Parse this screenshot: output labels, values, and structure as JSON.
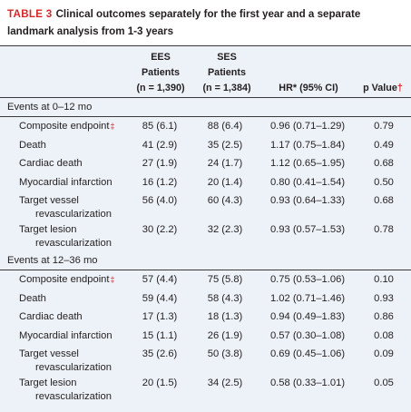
{
  "caption": {
    "label": "TABLE 3",
    "text": "Clinical outcomes separately for the first year and a separate landmark analysis from 1-3 years"
  },
  "headers": {
    "ees": [
      "EES",
      "Patients",
      "(n = 1,390)"
    ],
    "ses": [
      "SES",
      "Patients",
      "(n = 1,384)"
    ],
    "hr": "HR* (95% CI)",
    "p": "p Value",
    "p_mark": "†"
  },
  "sections": [
    {
      "title": "Events at 0–12 mo",
      "rows": [
        {
          "name": "Composite endpoint",
          "mark": "‡",
          "cont": "",
          "ees": "85 (6.1)",
          "ses": "88 (6.4)",
          "hr": "0.96 (0.71–1.29)",
          "p": "0.79"
        },
        {
          "name": "Death",
          "mark": "",
          "cont": "",
          "ees": "41 (2.9)",
          "ses": "35 (2.5)",
          "hr": "1.17 (0.75–1.84)",
          "p": "0.49"
        },
        {
          "name": "Cardiac death",
          "mark": "",
          "cont": "",
          "ees": "27 (1.9)",
          "ses": "24 (1.7)",
          "hr": "1.12 (0.65–1.95)",
          "p": "0.68"
        },
        {
          "name": "Myocardial infarction",
          "mark": "",
          "cont": "",
          "ees": "16 (1.2)",
          "ses": "20 (1.4)",
          "hr": "0.80 (0.41–1.54)",
          "p": "0.50"
        },
        {
          "name": "Target vessel",
          "mark": "",
          "cont": "revascularization",
          "ees": "56 (4.0)",
          "ses": "60 (4.3)",
          "hr": "0.93 (0.64–1.33)",
          "p": "0.68"
        },
        {
          "name": "Target lesion",
          "mark": "",
          "cont": "revascularization",
          "ees": "30 (2.2)",
          "ses": "32 (2.3)",
          "hr": "0.93 (0.57–1.53)",
          "p": "0.78"
        }
      ]
    },
    {
      "title": "Events at 12–36 mo",
      "rows": [
        {
          "name": "Composite endpoint",
          "mark": "‡",
          "cont": "",
          "ees": "57 (4.4)",
          "ses": "75 (5.8)",
          "hr": "0.75 (0.53–1.06)",
          "p": "0.10"
        },
        {
          "name": "Death",
          "mark": "",
          "cont": "",
          "ees": "59 (4.4)",
          "ses": "58 (4.3)",
          "hr": "1.02 (0.71–1.46)",
          "p": "0.93"
        },
        {
          "name": "Cardiac death",
          "mark": "",
          "cont": "",
          "ees": "17 (1.3)",
          "ses": "18 (1.3)",
          "hr": "0.94 (0.49–1.83)",
          "p": "0.86"
        },
        {
          "name": "Myocardial infarction",
          "mark": "",
          "cont": "",
          "ees": "15 (1.1)",
          "ses": "26 (1.9)",
          "hr": "0.57 (0.30–1.08)",
          "p": "0.08"
        },
        {
          "name": "Target vessel",
          "mark": "",
          "cont": "revascularization",
          "ees": "35 (2.6)",
          "ses": "50 (3.8)",
          "hr": "0.69 (0.45–1.06)",
          "p": "0.09"
        },
        {
          "name": "Target lesion",
          "mark": "",
          "cont": "revascularization",
          "ees": "20 (1.5)",
          "ses": "34 (2.5)",
          "hr": "0.58 (0.33–1.01)",
          "p": "0.05"
        }
      ]
    }
  ]
}
